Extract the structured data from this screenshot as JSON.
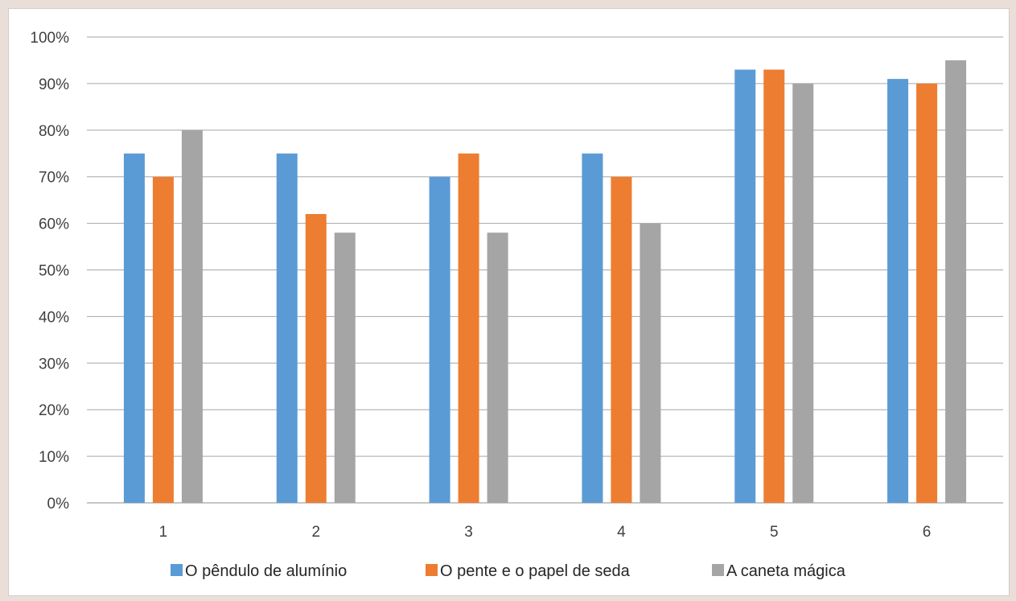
{
  "chart_data": {
    "type": "bar",
    "title": "",
    "xlabel": "",
    "ylabel": "",
    "categories": [
      "1",
      "2",
      "3",
      "4",
      "5",
      "6"
    ],
    "ylim": [
      0,
      100
    ],
    "y_ticks": [
      "0%",
      "10%",
      "20%",
      "30%",
      "40%",
      "50%",
      "60%",
      "70%",
      "80%",
      "90%",
      "100%"
    ],
    "grid": true,
    "legend_position": "bottom",
    "series": [
      {
        "name": "O pêndulo de alumínio",
        "color": "#5b9bd5",
        "values": [
          75,
          75,
          70,
          75,
          93,
          91
        ]
      },
      {
        "name": "O pente e o papel de seda",
        "color": "#ed7d31",
        "values": [
          70,
          62,
          75,
          70,
          93,
          90
        ]
      },
      {
        "name": "A caneta mágica",
        "color": "#a5a5a5",
        "values": [
          80,
          58,
          58,
          60,
          90,
          95
        ]
      }
    ]
  }
}
